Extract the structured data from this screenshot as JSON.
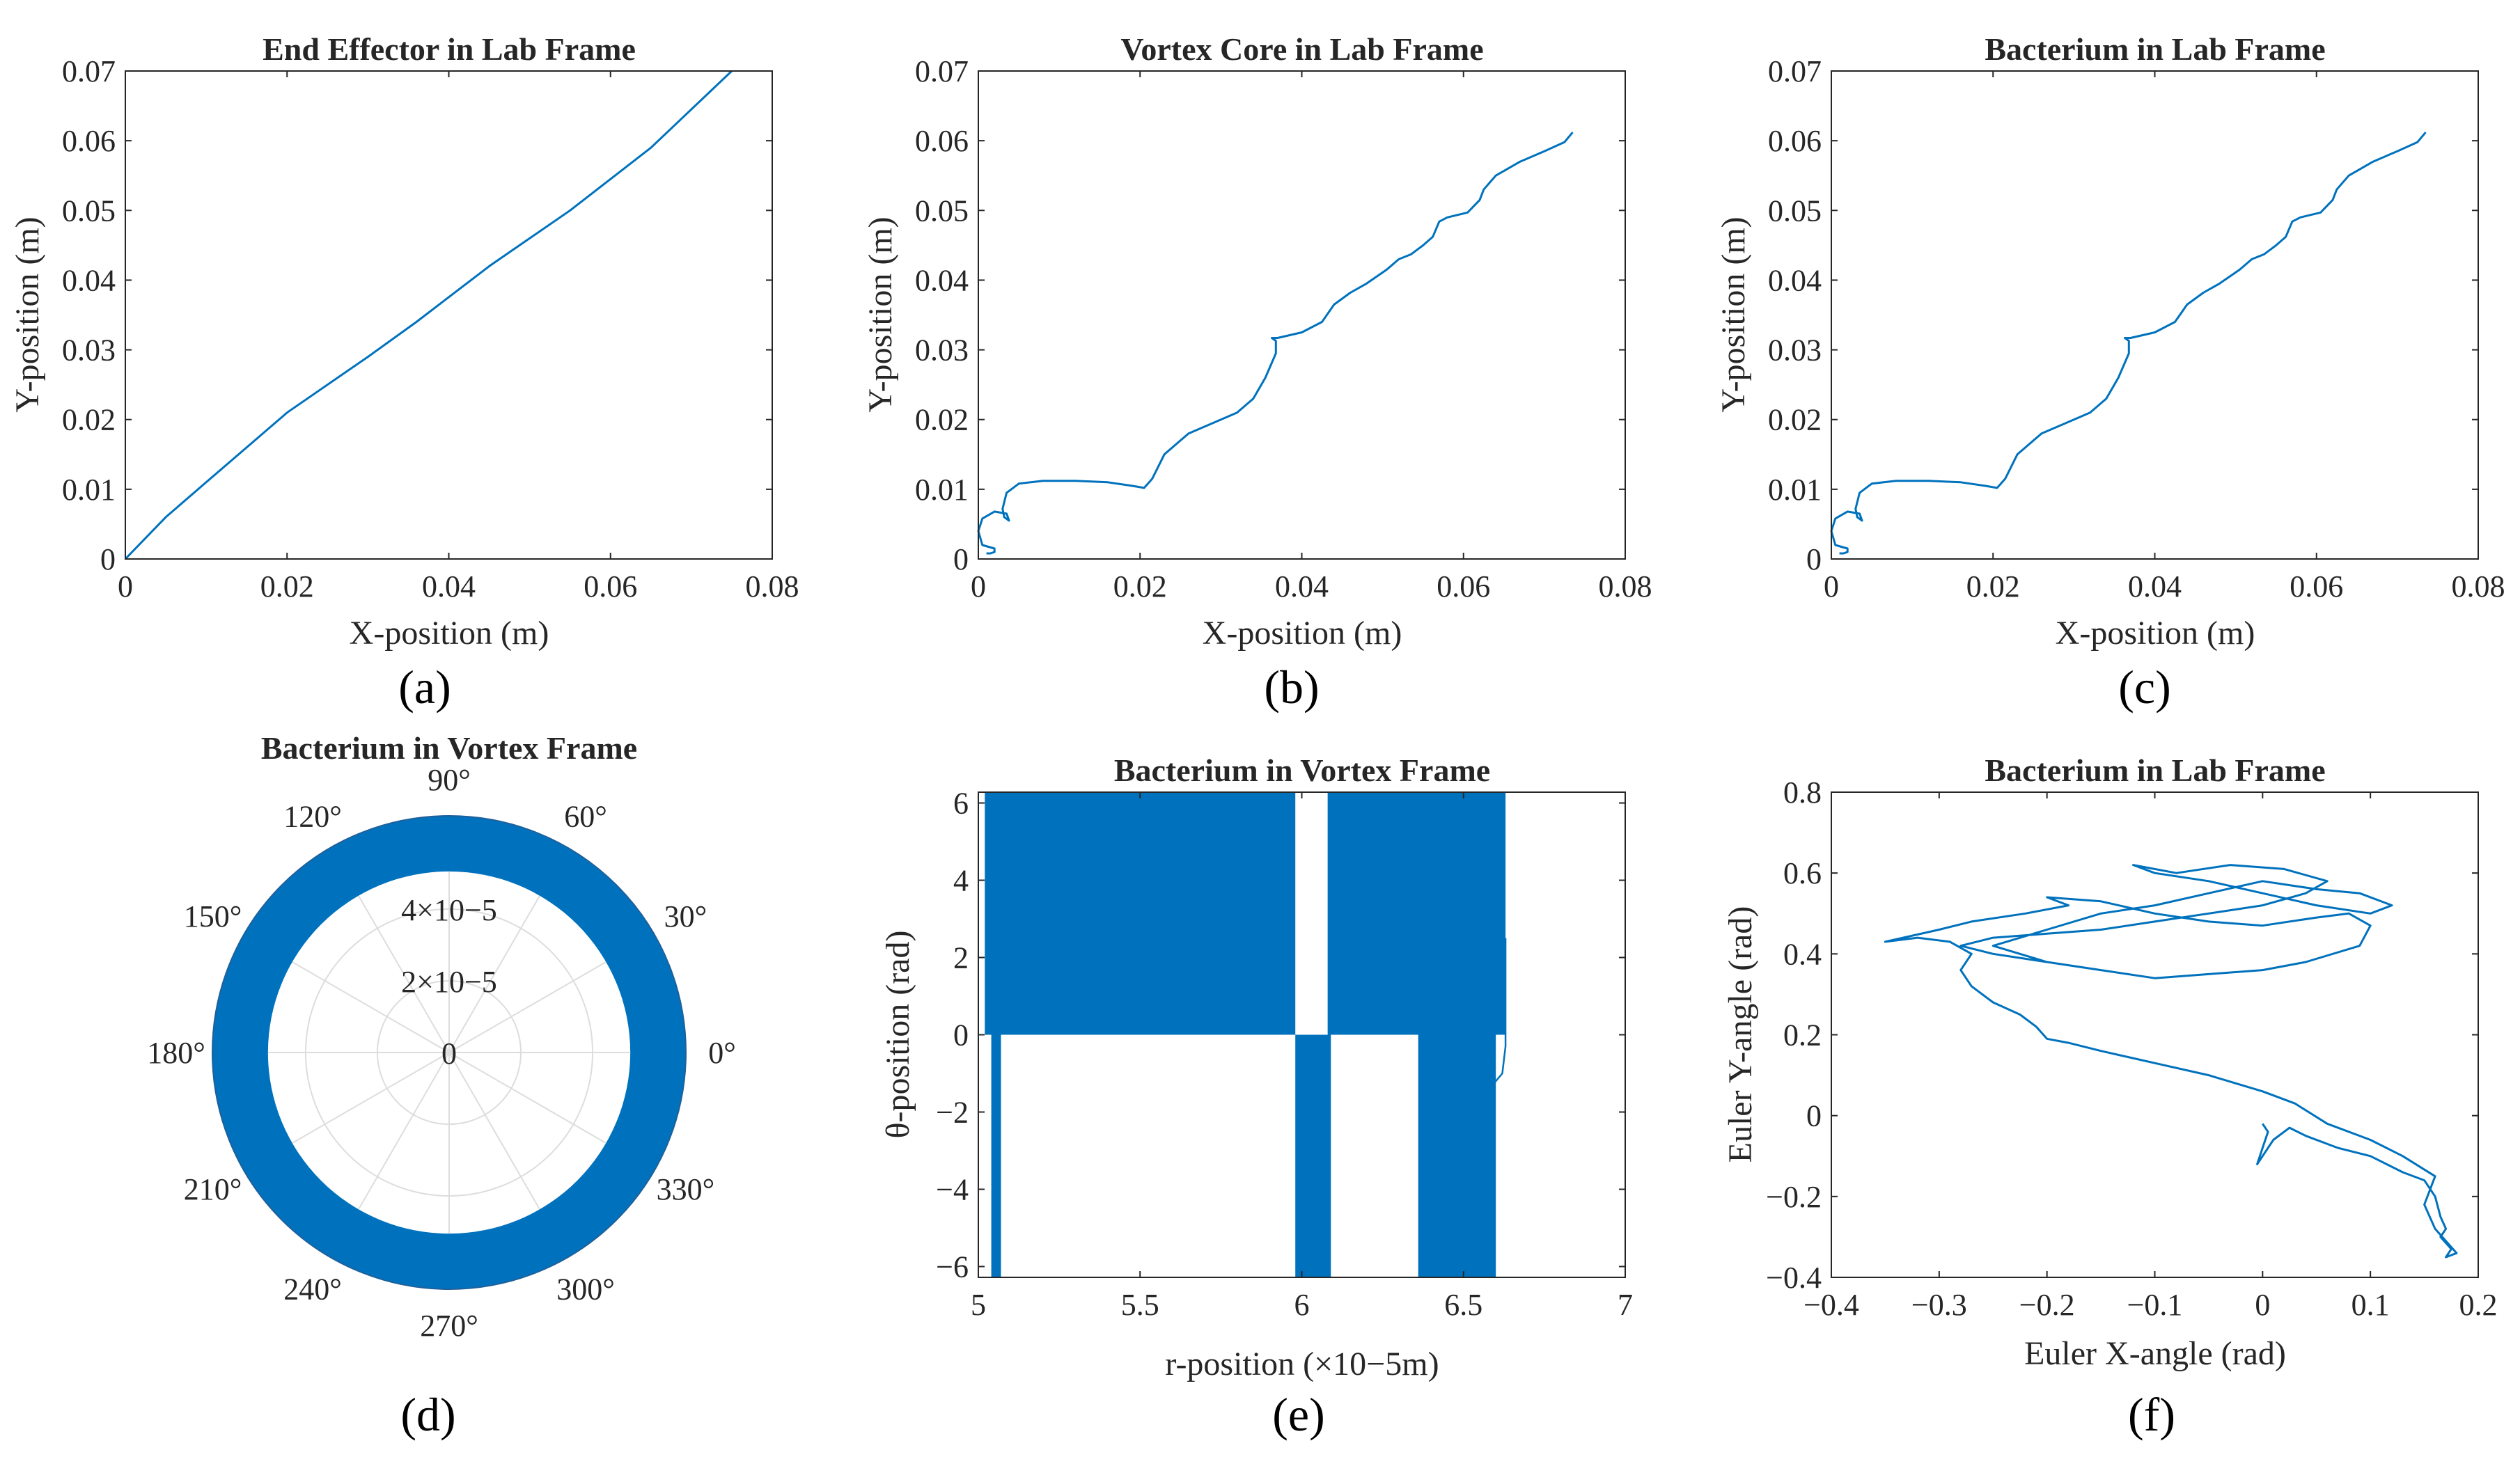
{
  "figure": {
    "captions": [
      "(a)",
      "(b)",
      "(c)",
      "(d)",
      "(e)",
      "(f)"
    ],
    "line_color": "#0072BD",
    "frame_color": "#262626",
    "grid_color": "#dddddd"
  },
  "chart_data": [
    {
      "id": "a",
      "type": "line",
      "title": "End Effector in Lab Frame",
      "xlabel": "X-position (m)",
      "ylabel": "Y-position (m)",
      "xlim": [
        0,
        0.08
      ],
      "ylim": [
        0,
        0.07
      ],
      "xticks": [
        0,
        0.02,
        0.04,
        0.06,
        0.08
      ],
      "xtick_labels": [
        "0",
        "0.02",
        "0.04",
        "0.06",
        "0.08"
      ],
      "yticks": [
        0,
        0.01,
        0.02,
        0.03,
        0.04,
        0.05,
        0.06,
        0.07
      ],
      "ytick_labels": [
        "0",
        "0.01",
        "0.02",
        "0.03",
        "0.04",
        "0.05",
        "0.06",
        "0.07"
      ],
      "series": [
        {
          "name": "end-effector-path",
          "x": [
            0,
            0.005,
            0.01,
            0.015,
            0.02,
            0.03,
            0.036,
            0.045,
            0.055,
            0.065,
            0.075
          ],
          "y": [
            0,
            0.006,
            0.011,
            0.016,
            0.021,
            0.029,
            0.034,
            0.042,
            0.05,
            0.059,
            0.07
          ]
        }
      ]
    },
    {
      "id": "b",
      "type": "line",
      "title": "Vortex Core in Lab Frame",
      "xlabel": "X-position (m)",
      "ylabel": "Y-position (m)",
      "xlim": [
        0,
        0.08
      ],
      "ylim": [
        0,
        0.07
      ],
      "xticks": [
        0,
        0.02,
        0.04,
        0.06,
        0.08
      ],
      "xtick_labels": [
        "0",
        "0.02",
        "0.04",
        "0.06",
        "0.08"
      ],
      "yticks": [
        0,
        0.01,
        0.02,
        0.03,
        0.04,
        0.05,
        0.06,
        0.07
      ],
      "ytick_labels": [
        "0",
        "0.01",
        "0.02",
        "0.03",
        "0.04",
        "0.05",
        "0.06",
        "0.07"
      ],
      "series": [
        {
          "name": "vortex-core-path",
          "x": [
            0.001,
            0.0015,
            0.002,
            0.002,
            0.0005,
            0,
            0.0005,
            0.002,
            0.0035,
            0.0038,
            0.0032,
            0.003,
            0.0035,
            0.005,
            0.008,
            0.012,
            0.016,
            0.019,
            0.0205,
            0.0215,
            0.023,
            0.026,
            0.029,
            0.032,
            0.034,
            0.0355,
            0.0368,
            0.0368,
            0.0363,
            0.037,
            0.04,
            0.0425,
            0.044,
            0.046,
            0.048,
            0.0505,
            0.052,
            0.0535,
            0.055,
            0.0562,
            0.057,
            0.057,
            0.058,
            0.0605,
            0.062,
            0.0625,
            0.064,
            0.067,
            0.07,
            0.0725,
            0.0735
          ],
          "y": [
            0.0008,
            0.0008,
            0.001,
            0.0015,
            0.002,
            0.004,
            0.0058,
            0.0068,
            0.0065,
            0.0055,
            0.006,
            0.0072,
            0.0095,
            0.0108,
            0.0112,
            0.0112,
            0.011,
            0.0105,
            0.0102,
            0.0115,
            0.015,
            0.018,
            0.0195,
            0.021,
            0.023,
            0.026,
            0.0295,
            0.0313,
            0.0317,
            0.0317,
            0.0325,
            0.034,
            0.0365,
            0.0382,
            0.0395,
            0.0415,
            0.043,
            0.0437,
            0.045,
            0.0462,
            0.0484,
            0.0484,
            0.049,
            0.0497,
            0.0515,
            0.053,
            0.055,
            0.057,
            0.0585,
            0.0598,
            0.0612
          ]
        }
      ]
    },
    {
      "id": "c",
      "type": "line",
      "title": "Bacterium in Lab Frame",
      "xlabel": "X-position (m)",
      "ylabel": "Y-position (m)",
      "xlim": [
        0,
        0.08
      ],
      "ylim": [
        0,
        0.07
      ],
      "xticks": [
        0,
        0.02,
        0.04,
        0.06,
        0.08
      ],
      "xtick_labels": [
        "0",
        "0.02",
        "0.04",
        "0.06",
        "0.08"
      ],
      "yticks": [
        0,
        0.01,
        0.02,
        0.03,
        0.04,
        0.05,
        0.06,
        0.07
      ],
      "ytick_labels": [
        "0",
        "0.01",
        "0.02",
        "0.03",
        "0.04",
        "0.05",
        "0.06",
        "0.07"
      ],
      "series": [
        {
          "name": "bacterium-lab-path",
          "x": [
            0.001,
            0.0015,
            0.002,
            0.002,
            0.0005,
            0,
            0.0005,
            0.002,
            0.0035,
            0.0038,
            0.0032,
            0.003,
            0.0035,
            0.005,
            0.008,
            0.012,
            0.016,
            0.019,
            0.0205,
            0.0215,
            0.023,
            0.026,
            0.029,
            0.032,
            0.034,
            0.0355,
            0.0368,
            0.0368,
            0.0363,
            0.037,
            0.04,
            0.0425,
            0.044,
            0.046,
            0.048,
            0.0505,
            0.052,
            0.0535,
            0.055,
            0.0562,
            0.057,
            0.057,
            0.058,
            0.0605,
            0.062,
            0.0625,
            0.064,
            0.067,
            0.07,
            0.0725,
            0.0735
          ],
          "y": [
            0.0008,
            0.0008,
            0.001,
            0.0015,
            0.002,
            0.004,
            0.0058,
            0.0068,
            0.0065,
            0.0055,
            0.006,
            0.0072,
            0.0095,
            0.0108,
            0.0112,
            0.0112,
            0.011,
            0.0105,
            0.0102,
            0.0115,
            0.015,
            0.018,
            0.0195,
            0.021,
            0.023,
            0.026,
            0.0295,
            0.0313,
            0.0317,
            0.0317,
            0.0325,
            0.034,
            0.0365,
            0.0382,
            0.0395,
            0.0415,
            0.043,
            0.0437,
            0.045,
            0.0462,
            0.0484,
            0.0484,
            0.049,
            0.0497,
            0.0515,
            0.053,
            0.055,
            0.057,
            0.0585,
            0.0598,
            0.0612
          ]
        }
      ]
    },
    {
      "id": "d",
      "type": "polar",
      "title": "Bacterium in Vortex Frame",
      "rlim": [
        0,
        6.6e-05
      ],
      "r_band": [
        5.05e-05,
        6.6e-05
      ],
      "r_grid": [
        2e-05,
        4e-05
      ],
      "r_tick_labels": [
        "0",
        "2×10−5",
        "4×10−5"
      ],
      "angle_ticks": [
        0,
        30,
        60,
        90,
        120,
        150,
        180,
        210,
        240,
        270,
        300,
        330
      ],
      "angle_tick_labels": [
        "0°",
        "30°",
        "60°",
        "90°",
        "120°",
        "150°",
        "180°",
        "210°",
        "240°",
        "270°",
        "300°",
        "330°"
      ]
    },
    {
      "id": "e",
      "type": "line",
      "title": "Bacterium in Vortex Frame",
      "xlabel": "r-position (×10−5m)",
      "ylabel": "θ-position (rad)",
      "xlim": [
        5,
        7
      ],
      "ylim": [
        -6.28,
        6.28
      ],
      "xticks": [
        5,
        5.5,
        6,
        6.5,
        7
      ],
      "xtick_labels": [
        "5",
        "5.5",
        "6",
        "6.5",
        "7"
      ],
      "yticks": [
        -6,
        -4,
        -2,
        0,
        2,
        4,
        6
      ],
      "ytick_labels": [
        "−6",
        "−4",
        "−2",
        "0",
        "2",
        "4",
        "6"
      ],
      "filled_bands": [
        {
          "x": [
            5.02,
            5.98
          ],
          "y": [
            0,
            6.28
          ]
        },
        {
          "x": [
            6.08,
            6.63
          ],
          "y": [
            0,
            6.28
          ]
        },
        {
          "x": [
            5.04,
            5.07
          ],
          "y": [
            -6.28,
            0
          ]
        },
        {
          "x": [
            5.98,
            6.09
          ],
          "y": [
            -6.28,
            0
          ]
        },
        {
          "x": [
            6.36,
            6.6
          ],
          "y": [
            -6.28,
            0
          ]
        }
      ]
    },
    {
      "id": "f",
      "type": "line",
      "title": "Bacterium in Lab Frame",
      "xlabel": "Euler X-angle (rad)",
      "ylabel": "Euler Y-angle (rad)",
      "xlim": [
        -0.4,
        0.2
      ],
      "ylim": [
        -0.4,
        0.8
      ],
      "xticks": [
        -0.4,
        -0.3,
        -0.2,
        -0.1,
        0,
        0.1,
        0.2
      ],
      "xtick_labels": [
        "−0.4",
        "−0.3",
        "−0.2",
        "−0.1",
        "0",
        "0.1",
        "0.2"
      ],
      "yticks": [
        -0.4,
        -0.2,
        0,
        0.2,
        0.4,
        0.6,
        0.8
      ],
      "ytick_labels": [
        "−0.4",
        "−0.2",
        "0",
        "0.2",
        "0.4",
        "0.6",
        "0.8"
      ],
      "series": [
        {
          "name": "euler-angle-path",
          "x": [
            0.0,
            0.005,
            0.0,
            -0.005,
            0.01,
            0.025,
            0.04,
            0.07,
            0.1,
            0.13,
            0.15,
            0.16,
            0.165,
            0.17,
            0.165,
            0.175,
            0.17,
            0.18,
            0.16,
            0.15,
            0.16,
            0.13,
            0.1,
            0.06,
            0.03,
            0.0,
            -0.05,
            -0.1,
            -0.15,
            -0.18,
            -0.2,
            -0.21,
            -0.225,
            -0.25,
            -0.27,
            -0.28,
            -0.27,
            -0.29,
            -0.32,
            -0.35,
            -0.3,
            -0.27,
            -0.22,
            -0.18,
            -0.2,
            -0.15,
            -0.1,
            -0.05,
            0.0,
            0.05,
            0.08,
            0.1,
            0.09,
            0.04,
            0.0,
            -0.05,
            -0.1,
            -0.15,
            -0.2,
            -0.25,
            -0.2,
            -0.15,
            -0.1,
            -0.05,
            0.0,
            0.05,
            0.09,
            0.12,
            0.1,
            0.05,
            0.0,
            -0.05,
            -0.1,
            -0.12,
            -0.08,
            -0.03,
            0.02,
            0.06,
            0.04,
            0.0,
            -0.05,
            -0.1,
            -0.15,
            -0.2,
            -0.25,
            -0.28,
            -0.25,
            -0.2
          ],
          "y": [
            -0.02,
            -0.04,
            -0.08,
            -0.12,
            -0.06,
            -0.03,
            -0.05,
            -0.08,
            -0.1,
            -0.14,
            -0.16,
            -0.2,
            -0.25,
            -0.28,
            -0.3,
            -0.33,
            -0.35,
            -0.34,
            -0.28,
            -0.22,
            -0.15,
            -0.1,
            -0.06,
            -0.02,
            0.03,
            0.06,
            0.1,
            0.13,
            0.16,
            0.18,
            0.19,
            0.22,
            0.25,
            0.28,
            0.32,
            0.36,
            0.4,
            0.43,
            0.44,
            0.43,
            0.46,
            0.48,
            0.5,
            0.52,
            0.54,
            0.53,
            0.5,
            0.48,
            0.47,
            0.49,
            0.5,
            0.47,
            0.42,
            0.38,
            0.36,
            0.35,
            0.34,
            0.36,
            0.38,
            0.42,
            0.46,
            0.5,
            0.52,
            0.55,
            0.58,
            0.56,
            0.55,
            0.52,
            0.5,
            0.52,
            0.55,
            0.58,
            0.6,
            0.62,
            0.6,
            0.62,
            0.61,
            0.58,
            0.55,
            0.52,
            0.5,
            0.48,
            0.46,
            0.45,
            0.44,
            0.42,
            0.4,
            0.38
          ]
        }
      ]
    }
  ]
}
